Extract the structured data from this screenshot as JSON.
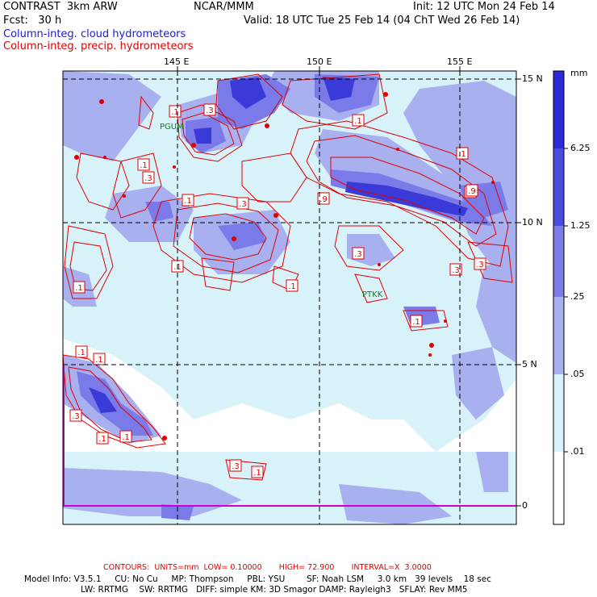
{
  "header": {
    "model": "CONTRAST  3km ARW",
    "org": "NCAR/MMM",
    "init": "Init: 12 UTC Mon 24 Feb 14",
    "fcst": "Fcst:   30 h",
    "valid": "Valid: 18 UTC Tue 25 Feb 14 (04 ChT Wed 26 Feb 14)",
    "field_cloud": "Column-integ. cloud hydrometeors",
    "field_precip": "Column-integ. precip. hydrometeors"
  },
  "axes": {
    "lon_labels": [
      "145 E",
      "150 E",
      "155 E"
    ],
    "lat_labels": [
      "15 N",
      "10 N",
      "5 N",
      "0"
    ]
  },
  "stations": [
    "PGUM",
    "PTKK"
  ],
  "contour_labels": [
    ".1",
    ".3",
    ".1",
    ".1",
    ".3",
    ".1",
    ".3",
    ".9",
    ".9",
    ".1",
    ".3",
    ".9",
    ".3",
    ".1",
    ".1",
    ".3",
    ".1",
    ".1",
    ".1",
    ".3",
    ".1",
    ".1",
    ".3",
    ".1",
    ".1"
  ],
  "colorbar": {
    "unit": "mm",
    "levels": [
      "6.25",
      "1.25",
      ".25",
      ".05",
      ".01"
    ],
    "colors": [
      "#2a2ad8",
      "#4a4ae0",
      "#7a7ae8",
      "#a8b0f0",
      "#d8f2fa",
      "#ffffff"
    ]
  },
  "map_colors": {
    "light": "#d8f2fa",
    "mid": "#a8b0f0",
    "med": "#7a7ae8",
    "dark": "#3a3ad8",
    "contour": "#e00000",
    "equator": "#cc00cc"
  },
  "footer": {
    "contours": "CONTOURS:  UNITS=mm  LOW= 0.10000       HIGH= 72.900       INTERVAL=X  3.0000",
    "line1": "Model Info: V3.5.1     CU: No Cu     MP: Thompson     PBL: YSU        SF: Noah LSM     3.0 km   39 levels    18 sec",
    "line2": "LW: RRTMG    SW: RRTMG   DIFF: simple KM: 3D Smagor DAMP: Rayleigh3   SFLAY: Rev MM5"
  }
}
